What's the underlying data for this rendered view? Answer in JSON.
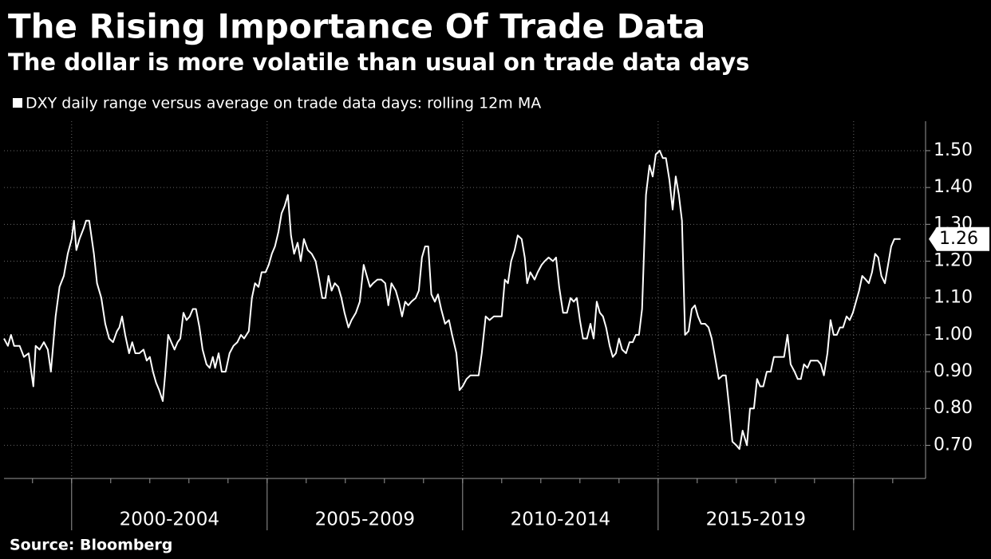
{
  "chart_data": {
    "type": "line",
    "title": "The Rising Importance Of Trade Data",
    "subtitle": "The dollar is more volatile than usual on trade data days",
    "source": "Source: Bloomberg",
    "background": "#000000",
    "grid": true,
    "legend": "top-left",
    "xlim": [
      1998.27,
      2021.84
    ],
    "xticks": [
      1999,
      2000,
      2001,
      2002,
      2003,
      2004,
      2005,
      2006,
      2007,
      2008,
      2009,
      2010,
      2011,
      2012,
      2013,
      2014,
      2015,
      2016,
      2017,
      2018,
      2019,
      2020,
      2021
    ],
    "x_groups": [
      {
        "label": "2000-2004",
        "start": 2000,
        "end": 2005
      },
      {
        "label": "2005-2009",
        "start": 2005,
        "end": 2010
      },
      {
        "label": "2010-2014",
        "start": 2010,
        "end": 2015
      },
      {
        "label": "2015-2019",
        "start": 2015,
        "end": 2020
      }
    ],
    "group_boundaries": [
      2000,
      2005,
      2010,
      2015,
      2020
    ],
    "ylim": [
      0.61,
      1.58
    ],
    "yticks": [
      {
        "value": 0.7,
        "label": "0.70"
      },
      {
        "value": 0.8,
        "label": "0.80"
      },
      {
        "value": 0.9,
        "label": "0.90"
      },
      {
        "value": 1.0,
        "label": "1.00"
      },
      {
        "value": 1.1,
        "label": "1.10"
      },
      {
        "value": 1.2,
        "label": "1.20"
      },
      {
        "value": 1.3,
        "label": "1.30"
      },
      {
        "value": 1.4,
        "label": "1.40"
      },
      {
        "value": 1.5,
        "label": "1.50"
      }
    ],
    "x": [
      1998.27,
      1998.37,
      1998.45,
      1998.53,
      1998.67,
      1998.78,
      1998.9,
      1999.02,
      1999.08,
      1999.18,
      1999.29,
      1999.39,
      1999.47,
      1999.59,
      1999.69,
      1999.8,
      1999.9,
      2000.0,
      2000.06,
      2000.12,
      2000.2,
      2000.31,
      2000.37,
      2000.45,
      2000.57,
      2000.65,
      2000.76,
      2000.86,
      2000.96,
      2001.06,
      2001.16,
      2001.22,
      2001.29,
      2001.37,
      2001.47,
      2001.55,
      2001.63,
      2001.73,
      2001.84,
      2001.92,
      2002.0,
      2002.08,
      2002.16,
      2002.24,
      2002.33,
      2002.39,
      2002.47,
      2002.55,
      2002.63,
      2002.71,
      2002.78,
      2002.86,
      2002.94,
      2003.02,
      2003.1,
      2003.18,
      2003.27,
      2003.35,
      2003.45,
      2003.53,
      2003.61,
      2003.67,
      2003.76,
      2003.84,
      2003.94,
      2004.04,
      2004.14,
      2004.24,
      2004.33,
      2004.41,
      2004.53,
      2004.61,
      2004.69,
      2004.78,
      2004.86,
      2004.96,
      2005.04,
      2005.12,
      2005.2,
      2005.29,
      2005.37,
      2005.45,
      2005.53,
      2005.61,
      2005.69,
      2005.78,
      2005.86,
      2005.94,
      2006.04,
      2006.14,
      2006.24,
      2006.33,
      2006.41,
      2006.49,
      2006.57,
      2006.65,
      2006.73,
      2006.82,
      2006.9,
      2006.98,
      2007.08,
      2007.16,
      2007.27,
      2007.37,
      2007.47,
      2007.55,
      2007.63,
      2007.71,
      2007.82,
      2007.92,
      2008.02,
      2008.1,
      2008.18,
      2008.29,
      2008.37,
      2008.45,
      2008.53,
      2008.61,
      2008.69,
      2008.8,
      2008.88,
      2008.96,
      2009.04,
      2009.12,
      2009.2,
      2009.29,
      2009.37,
      2009.45,
      2009.55,
      2009.65,
      2009.73,
      2009.84,
      2009.92,
      2010.0,
      2010.1,
      2010.2,
      2010.31,
      2010.41,
      2010.49,
      2010.59,
      2010.69,
      2010.8,
      2010.92,
      2011.0,
      2011.08,
      2011.16,
      2011.24,
      2011.33,
      2011.41,
      2011.51,
      2011.59,
      2011.65,
      2011.73,
      2011.84,
      2011.92,
      2012.02,
      2012.1,
      2012.2,
      2012.31,
      2012.39,
      2012.47,
      2012.57,
      2012.67,
      2012.76,
      2012.84,
      2012.92,
      2013.0,
      2013.08,
      2013.18,
      2013.27,
      2013.35,
      2013.43,
      2013.51,
      2013.59,
      2013.67,
      2013.76,
      2013.84,
      2013.92,
      2014.0,
      2014.08,
      2014.18,
      2014.27,
      2014.35,
      2014.43,
      2014.51,
      2014.59,
      2014.69,
      2014.78,
      2014.86,
      2014.94,
      2015.04,
      2015.12,
      2015.2,
      2015.29,
      2015.37,
      2015.45,
      2015.53,
      2015.61,
      2015.69,
      2015.78,
      2015.86,
      2015.94,
      2016.02,
      2016.1,
      2016.2,
      2016.29,
      2016.37,
      2016.47,
      2016.55,
      2016.65,
      2016.73,
      2016.82,
      2016.9,
      2017.0,
      2017.08,
      2017.16,
      2017.27,
      2017.35,
      2017.45,
      2017.53,
      2017.61,
      2017.69,
      2017.78,
      2017.88,
      2017.96,
      2018.04,
      2018.12,
      2018.22,
      2018.31,
      2018.39,
      2018.49,
      2018.57,
      2018.65,
      2018.73,
      2018.82,
      2018.9,
      2019.0,
      2019.08,
      2019.16,
      2019.24,
      2019.33,
      2019.41,
      2019.49,
      2019.57,
      2019.65,
      2019.73,
      2019.82,
      2019.9,
      2019.98,
      2020.06,
      2020.14,
      2020.22,
      2020.31,
      2020.39,
      2020.47,
      2020.55,
      2020.63,
      2020.71,
      2020.8,
      2020.88,
      2020.96,
      2021.04,
      2021.12,
      2021.2
    ],
    "series": [
      {
        "name": "DXY daily range versus average on trade data days: rolling 12m MA",
        "color": "#ffffff",
        "values": [
          0.99,
          0.97,
          1.0,
          0.97,
          0.97,
          0.94,
          0.95,
          0.86,
          0.97,
          0.96,
          0.98,
          0.96,
          0.9,
          1.05,
          1.13,
          1.16,
          1.22,
          1.26,
          1.31,
          1.23,
          1.26,
          1.29,
          1.31,
          1.31,
          1.22,
          1.14,
          1.1,
          1.03,
          0.99,
          0.98,
          1.01,
          1.02,
          1.05,
          1.0,
          0.95,
          0.98,
          0.95,
          0.95,
          0.96,
          0.93,
          0.94,
          0.9,
          0.87,
          0.85,
          0.82,
          0.89,
          1.0,
          0.98,
          0.96,
          0.98,
          0.99,
          1.06,
          1.04,
          1.05,
          1.07,
          1.07,
          1.02,
          0.96,
          0.92,
          0.91,
          0.94,
          0.91,
          0.95,
          0.9,
          0.9,
          0.95,
          0.97,
          0.98,
          1.0,
          0.99,
          1.01,
          1.1,
          1.14,
          1.13,
          1.17,
          1.17,
          1.19,
          1.22,
          1.24,
          1.28,
          1.33,
          1.35,
          1.38,
          1.27,
          1.22,
          1.25,
          1.2,
          1.26,
          1.23,
          1.22,
          1.2,
          1.15,
          1.1,
          1.1,
          1.16,
          1.12,
          1.14,
          1.13,
          1.1,
          1.06,
          1.02,
          1.04,
          1.06,
          1.09,
          1.19,
          1.16,
          1.13,
          1.14,
          1.15,
          1.15,
          1.14,
          1.08,
          1.14,
          1.12,
          1.09,
          1.05,
          1.09,
          1.08,
          1.09,
          1.1,
          1.12,
          1.21,
          1.24,
          1.24,
          1.11,
          1.09,
          1.11,
          1.07,
          1.03,
          1.04,
          1.0,
          0.95,
          0.85,
          0.86,
          0.88,
          0.89,
          0.89,
          0.89,
          0.95,
          1.05,
          1.04,
          1.05,
          1.05,
          1.05,
          1.15,
          1.14,
          1.2,
          1.23,
          1.27,
          1.26,
          1.21,
          1.14,
          1.17,
          1.15,
          1.17,
          1.19,
          1.2,
          1.21,
          1.2,
          1.21,
          1.13,
          1.06,
          1.06,
          1.1,
          1.09,
          1.1,
          1.04,
          0.99,
          0.99,
          1.03,
          0.99,
          1.09,
          1.06,
          1.05,
          1.02,
          0.97,
          0.94,
          0.95,
          0.99,
          0.96,
          0.95,
          0.98,
          0.98,
          1.0,
          1.0,
          1.07,
          1.38,
          1.46,
          1.43,
          1.49,
          1.5,
          1.48,
          1.48,
          1.42,
          1.34,
          1.43,
          1.38,
          1.31,
          1.0,
          1.01,
          1.07,
          1.08,
          1.05,
          1.03,
          1.03,
          1.02,
          0.99,
          0.93,
          0.88,
          0.89,
          0.89,
          0.8,
          0.71,
          0.7,
          0.69,
          0.74,
          0.7,
          0.8,
          0.8,
          0.88,
          0.86,
          0.86,
          0.9,
          0.9,
          0.94,
          0.94,
          0.94,
          0.94,
          1.0,
          0.92,
          0.9,
          0.88,
          0.88,
          0.92,
          0.91,
          0.93,
          0.93,
          0.93,
          0.92,
          0.89,
          0.95,
          1.04,
          1.0,
          1.0,
          1.02,
          1.02,
          1.05,
          1.04,
          1.06,
          1.09,
          1.12,
          1.16,
          1.15,
          1.14,
          1.17,
          1.22,
          1.21,
          1.16,
          1.14,
          1.19,
          1.24,
          1.26,
          1.26,
          1.26
        ]
      }
    ]
  }
}
